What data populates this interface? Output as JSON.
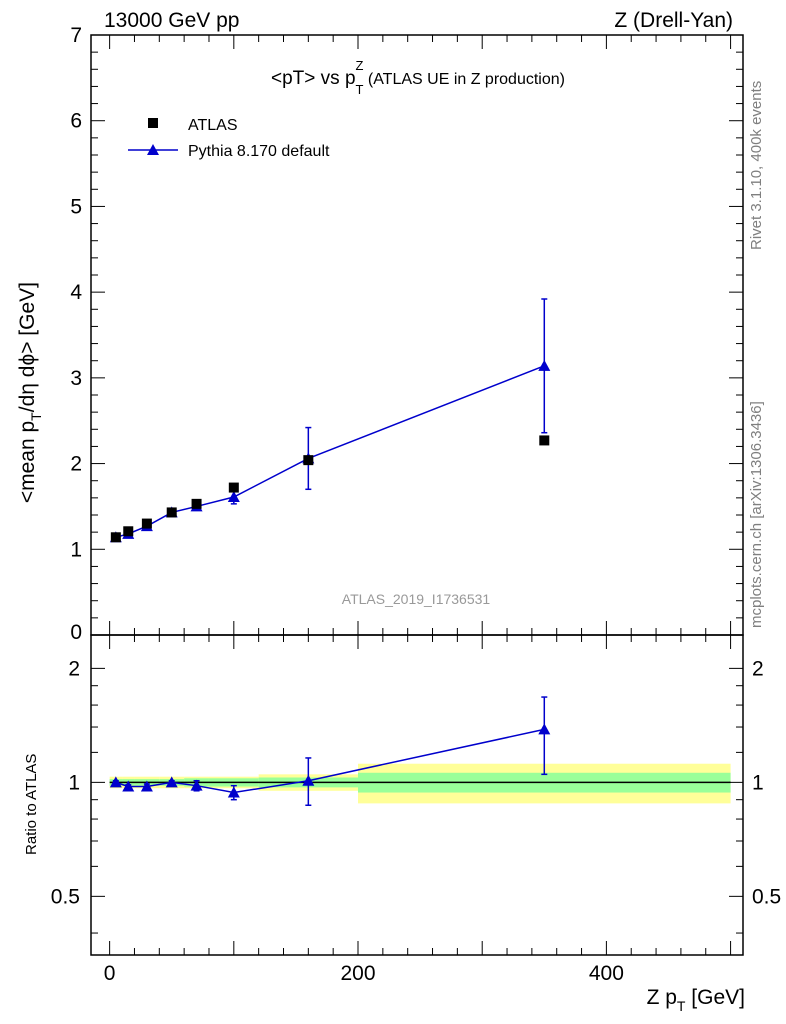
{
  "header": {
    "energy": "13000 GeV pp",
    "process": "Z (Drell-Yan)"
  },
  "side_labels": {
    "rivet": "Rivet 3.1.10,  400k events",
    "mcplots": "mcplots.cern.ch [arXiv:1306.3436]"
  },
  "colors": {
    "data": "#000000",
    "mc": "#0000cc",
    "band_inner": "#99ff99",
    "band_outer": "#ffff99"
  },
  "chart_data": {
    "type": "line",
    "title": {
      "prefix": "<pT> vs p",
      "sup": "Z",
      "sub": "T",
      "suffix": " (ATLAS UE in Z production)"
    },
    "watermark": "ATLAS_2019_I1736531",
    "ylabel": {
      "a": "<mean p",
      "a_sub": "T",
      "b": "/dη dϕ> [GeV]"
    },
    "xlabel": {
      "a": "Z p",
      "a_sub": "T",
      "b": " [GeV]"
    },
    "ratio_ylabel": "Ratio to ATLAS",
    "xlim": [
      -15,
      510
    ],
    "ylim": [
      0,
      7
    ],
    "ratio_ylim": [
      0.35,
      2.45
    ],
    "ratio_scale": "log",
    "x_ticks": [
      0,
      200,
      400
    ],
    "y_ticks": [
      1,
      2,
      3,
      4,
      5,
      6,
      7
    ],
    "y_tick_zero_label": "0",
    "ratio_ticks": [
      0.5,
      1,
      2
    ],
    "ratio_tick_labels": [
      "0.5",
      "1",
      "2"
    ],
    "legend": {
      "data": "ATLAS",
      "mc": "Pythia 8.170 default",
      "position": "top-left"
    },
    "bins": [
      [
        0,
        10
      ],
      [
        10,
        20
      ],
      [
        20,
        40
      ],
      [
        40,
        60
      ],
      [
        60,
        80
      ],
      [
        80,
        120
      ],
      [
        120,
        200
      ],
      [
        200,
        500
      ]
    ],
    "series": [
      {
        "name": "ATLAS",
        "x": [
          5,
          15,
          30,
          50,
          70,
          100,
          160,
          350
        ],
        "y": [
          1.14,
          1.21,
          1.3,
          1.43,
          1.53,
          1.72,
          2.04,
          2.27
        ]
      },
      {
        "name": "Pythia 8.170 default",
        "x": [
          5,
          15,
          30,
          50,
          70,
          100,
          160,
          350
        ],
        "y": [
          1.14,
          1.18,
          1.27,
          1.43,
          1.5,
          1.61,
          2.06,
          3.14
        ],
        "err": [
          0.02,
          0.02,
          0.03,
          0.02,
          0.04,
          0.08,
          0.36,
          0.78
        ]
      }
    ],
    "ratio": {
      "values": [
        1.0,
        0.975,
        0.975,
        1.0,
        0.98,
        0.94,
        1.01,
        1.38
      ],
      "err_low": [
        0.01,
        0.01,
        0.015,
        0.01,
        0.03,
        0.04,
        0.14,
        0.33
      ],
      "err_high": [
        0.01,
        0.01,
        0.015,
        0.01,
        0.03,
        0.04,
        0.15,
        0.3
      ],
      "band_inner": [
        0.02,
        0.02,
        0.02,
        0.02,
        0.025,
        0.025,
        0.03,
        0.06
      ],
      "band_outer": [
        0.035,
        0.035,
        0.035,
        0.035,
        0.035,
        0.035,
        0.05,
        0.12
      ]
    }
  }
}
